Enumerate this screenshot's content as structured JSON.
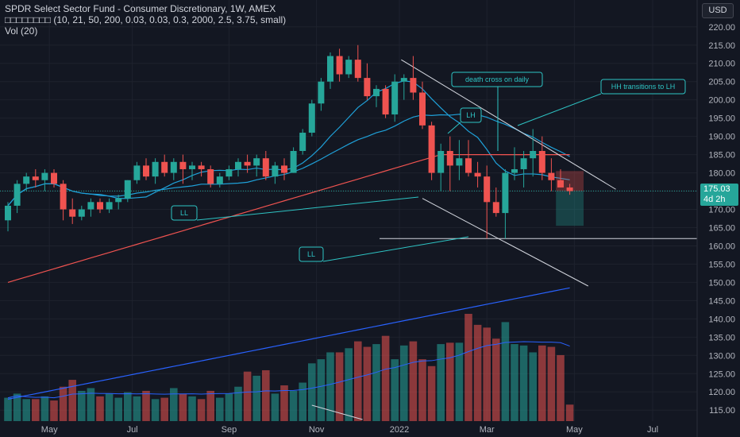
{
  "header": {
    "title": "SPDR Select Sector Fund - Consumer Discretionary, 1W, AMEX",
    "indicator_line": "□□□□□□□□ (10, 21, 50, 200, 0.03, 0.03, 0.3, 2000, 2.5, 3.75, small)",
    "volume_line": "Vol (20)",
    "currency": "USD"
  },
  "price_tag": {
    "price": "175.03",
    "countdown": "4d 2h"
  },
  "colors": {
    "background": "#131722",
    "up": "#26a69a",
    "down": "#ef5350",
    "ma_fast": "#1fa0d8",
    "ma_slow": "#ef5350",
    "ma_long": "#2962ff",
    "annotation": "#2ec4c4",
    "trendline": "#d1d4dc"
  },
  "annotations": [
    {
      "text": "death cross on daily"
    },
    {
      "text": "HH transitions to LH"
    },
    {
      "text": "LH"
    },
    {
      "text": "LL"
    },
    {
      "text": "LL"
    }
  ],
  "chart_data": {
    "type": "candlestick",
    "title": "SPDR Select Sector Fund - Consumer Discretionary, 1W, AMEX",
    "y_axis": {
      "ticks": [
        "220.00",
        "215.00",
        "210.00",
        "205.00",
        "200.00",
        "195.00",
        "190.00",
        "185.00",
        "180.00",
        "175.00",
        "170.00",
        "165.00",
        "160.00",
        "155.00",
        "150.00",
        "145.00",
        "140.00",
        "135.00",
        "130.00",
        "125.00",
        "120.00",
        "115.00"
      ],
      "range": [
        112,
        223
      ]
    },
    "x_axis": {
      "ticks": [
        "May",
        "Jul",
        "Sep",
        "Nov",
        "2022",
        "Mar",
        "May",
        "Jul"
      ]
    },
    "candles": [
      [
        167,
        172,
        164,
        171
      ],
      [
        171,
        178,
        169,
        177
      ],
      [
        177,
        180,
        175,
        179
      ],
      [
        179,
        181,
        176,
        178
      ],
      [
        178,
        181,
        175,
        180
      ],
      [
        180,
        181,
        176,
        177
      ],
      [
        177,
        178,
        167,
        170
      ],
      [
        170,
        173,
        166,
        168
      ],
      [
        168,
        171,
        167,
        170
      ],
      [
        170,
        173,
        168,
        172
      ],
      [
        172,
        173,
        169,
        170
      ],
      [
        170,
        173,
        169,
        172
      ],
      [
        172,
        174,
        170,
        173
      ],
      [
        173,
        178,
        172,
        178
      ],
      [
        178,
        183,
        177,
        182
      ],
      [
        182,
        184,
        178,
        179
      ],
      [
        179,
        184,
        177,
        183
      ],
      [
        183,
        185,
        179,
        180
      ],
      [
        180,
        184,
        178,
        183
      ],
      [
        183,
        185,
        177,
        181
      ],
      [
        181,
        183,
        178,
        182
      ],
      [
        182,
        183,
        179,
        181
      ],
      [
        181,
        182,
        176,
        177
      ],
      [
        177,
        180,
        176,
        179
      ],
      [
        179,
        182,
        178,
        181
      ],
      [
        181,
        184,
        179,
        183
      ],
      [
        183,
        185,
        180,
        182
      ],
      [
        182,
        185,
        179,
        184
      ],
      [
        184,
        186,
        178,
        179
      ],
      [
        179,
        183,
        177,
        182
      ],
      [
        182,
        184,
        178,
        180
      ],
      [
        180,
        187,
        180,
        186
      ],
      [
        186,
        192,
        185,
        191
      ],
      [
        191,
        200,
        190,
        199
      ],
      [
        199,
        206,
        197,
        205
      ],
      [
        205,
        213,
        203,
        212
      ],
      [
        212,
        214,
        205,
        207
      ],
      [
        207,
        212,
        206,
        211
      ],
      [
        211,
        215,
        205,
        206
      ],
      [
        206,
        210,
        200,
        201
      ],
      [
        201,
        204,
        198,
        203
      ],
      [
        203,
        204,
        195,
        196
      ],
      [
        196,
        207,
        194,
        205
      ],
      [
        205,
        207,
        200,
        206
      ],
      [
        206,
        212,
        200,
        202
      ],
      [
        202,
        205,
        192,
        193
      ],
      [
        193,
        194,
        178,
        180
      ],
      [
        180,
        188,
        175,
        186
      ],
      [
        186,
        190,
        175,
        182
      ],
      [
        182,
        189,
        178,
        184
      ],
      [
        184,
        189,
        179,
        180
      ],
      [
        180,
        183,
        176,
        179
      ],
      [
        179,
        182,
        162,
        172
      ],
      [
        172,
        176,
        168,
        169
      ],
      [
        169,
        181,
        162,
        180
      ],
      [
        180,
        187,
        178,
        181
      ],
      [
        181,
        186,
        176,
        184
      ],
      [
        184,
        192,
        179,
        186
      ],
      [
        186,
        190,
        178,
        180
      ],
      [
        180,
        184,
        175,
        178
      ],
      [
        178,
        181,
        176,
        176
      ],
      [
        176,
        177,
        174,
        175
      ]
    ],
    "volume": [
      17,
      20,
      16,
      16,
      18,
      15,
      25,
      30,
      22,
      24,
      18,
      20,
      17,
      21,
      18,
      22,
      16,
      17,
      24,
      20,
      18,
      16,
      22,
      17,
      20,
      25,
      36,
      33,
      37,
      20,
      26,
      22,
      28,
      42,
      45,
      50,
      50,
      53,
      58,
      54,
      56,
      62,
      45,
      55,
      58,
      45,
      40,
      56,
      57,
      57,
      78,
      70,
      68,
      60,
      72,
      56,
      55,
      50,
      55,
      54,
      48,
      12
    ]
  }
}
